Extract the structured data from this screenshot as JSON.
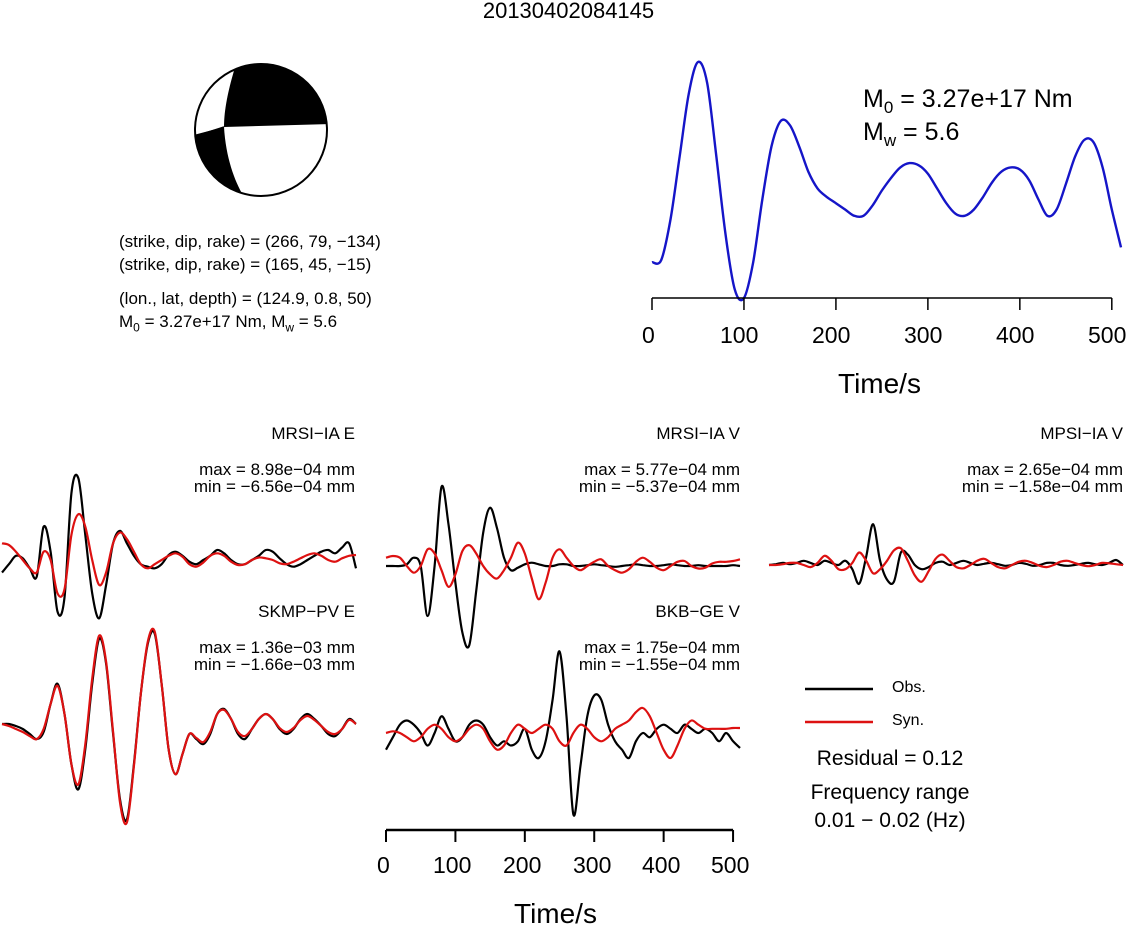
{
  "title": "20130402084145",
  "colors": {
    "obs": "#000000",
    "syn": "#dd1111",
    "stf": "#1515c8"
  },
  "focal_mechanism": {
    "line1": "(strike, dip, rake) = (266, 79, −134)",
    "line2": "(strike, dip, rake) = (165, 45, −15)",
    "line3": "(lon., lat, depth) = (124.9, 0.8, 50)",
    "m0_prefix": "M",
    "m0_sub": "0",
    "m0_mid": " = 3.27e+17 Nm, M",
    "mw_sub": "w",
    "mw_tail": " = 5.6"
  },
  "stf_annot": {
    "m0_base": "M",
    "m0_sub": "0",
    "m0_text": " = 3.27e+17 Nm",
    "mw_base": "M",
    "mw_sub": "w",
    "mw_text": " = 5.6"
  },
  "legend": {
    "obs": "Obs.",
    "syn": "Syn."
  },
  "info": {
    "residual": "Residual = 0.12",
    "freq_title": "Frequency range",
    "freq_value": "0.01 − 0.02 (Hz)"
  },
  "chart_data": [
    {
      "type": "line",
      "name": "source-time-function",
      "xlabel": "Time/s",
      "ylabel": "",
      "xlim": [
        0,
        510
      ],
      "xticks": [
        0,
        100,
        200,
        300,
        400,
        500
      ],
      "grid": false,
      "series": [
        {
          "name": "",
          "x": [
            0,
            10,
            20,
            30,
            40,
            50,
            60,
            70,
            80,
            90,
            100,
            110,
            120,
            130,
            140,
            150,
            160,
            170,
            180,
            190,
            200,
            210,
            220,
            230,
            240,
            250,
            260,
            270,
            280,
            290,
            300,
            310,
            320,
            330,
            340,
            350,
            360,
            370,
            380,
            390,
            400,
            410,
            420,
            430,
            440,
            450,
            460,
            470,
            480,
            490,
            500,
            510
          ],
          "y": [
            0.05,
            0.06,
            0.25,
            0.55,
            0.85,
            1.0,
            0.9,
            0.55,
            0.18,
            -0.08,
            -0.12,
            0.05,
            0.35,
            0.6,
            0.72,
            0.7,
            0.6,
            0.48,
            0.4,
            0.36,
            0.33,
            0.3,
            0.27,
            0.27,
            0.32,
            0.39,
            0.45,
            0.5,
            0.52,
            0.51,
            0.47,
            0.4,
            0.33,
            0.28,
            0.27,
            0.3,
            0.36,
            0.43,
            0.48,
            0.5,
            0.49,
            0.44,
            0.35,
            0.27,
            0.3,
            0.42,
            0.55,
            0.63,
            0.62,
            0.5,
            0.3,
            0.12
          ]
        }
      ]
    },
    {
      "type": "line",
      "name": "MRSI-IA E",
      "label": "MRSI−IA E",
      "max": "max = 8.98e−04 mm",
      "min": "min = −6.56e−04 mm",
      "x": [
        0,
        10,
        20,
        30,
        40,
        50,
        60,
        70,
        80,
        90,
        100,
        110,
        120,
        130,
        140,
        150,
        160,
        170,
        180,
        190,
        200,
        210,
        220,
        230,
        240,
        250,
        260,
        270,
        280,
        290,
        300,
        310,
        320,
        330,
        340,
        350,
        360,
        370,
        380,
        390,
        400,
        410,
        420,
        430,
        440,
        450,
        460,
        470,
        480,
        490,
        500,
        510
      ],
      "series": [
        {
          "name": "Obs.",
          "values": [
            -0.15,
            -0.05,
            0.05,
            0.02,
            -0.1,
            -0.2,
            0.4,
            0.1,
            -0.62,
            -0.45,
            0.8,
            0.98,
            0.3,
            -0.4,
            -0.7,
            -0.3,
            0.2,
            0.35,
            0.2,
            0.05,
            -0.05,
            -0.08,
            -0.1,
            -0.05,
            0.06,
            0.1,
            0.05,
            -0.02,
            -0.05,
            0.0,
            0.05,
            0.12,
            0.08,
            0.0,
            -0.05,
            -0.05,
            0.0,
            0.05,
            0.12,
            0.1,
            0.02,
            -0.05,
            -0.08,
            -0.05,
            0.0,
            0.05,
            0.1,
            0.12,
            0.08,
            0.15,
            0.2,
            -0.1
          ]
        },
        {
          "name": "Syn.",
          "values": [
            0.2,
            0.18,
            0.1,
            0.0,
            -0.1,
            -0.15,
            0.1,
            0.0,
            -0.4,
            -0.35,
            0.3,
            0.55,
            0.4,
            0.0,
            -0.3,
            -0.15,
            0.2,
            0.33,
            0.25,
            0.1,
            -0.05,
            -0.1,
            -0.05,
            0.0,
            0.05,
            0.08,
            0.04,
            -0.05,
            -0.08,
            -0.03,
            0.05,
            0.08,
            0.05,
            -0.02,
            -0.06,
            -0.05,
            0.0,
            0.03,
            0.02,
            0.0,
            -0.04,
            -0.05,
            -0.02,
            0.02,
            0.06,
            0.08,
            0.05,
            0.0,
            -0.02,
            0.02,
            0.05,
            0.06
          ]
        }
      ]
    },
    {
      "type": "line",
      "name": "MRSI-IA V",
      "label": "MRSI−IA V",
      "max": "max = 5.77e−04 mm",
      "min": "min = −5.37e−04 mm",
      "x": [
        0,
        10,
        20,
        30,
        40,
        50,
        60,
        70,
        80,
        90,
        100,
        110,
        120,
        130,
        140,
        150,
        160,
        170,
        180,
        190,
        200,
        210,
        220,
        230,
        240,
        250,
        260,
        270,
        280,
        290,
        300,
        310,
        320,
        330,
        340,
        350,
        360,
        370,
        380,
        390,
        400,
        410,
        420,
        430,
        440,
        450,
        460,
        470,
        480,
        490,
        500,
        510
      ],
      "series": [
        {
          "name": "Obs.",
          "values": [
            0.0,
            0.0,
            0.0,
            0.02,
            0.1,
            0.0,
            -0.6,
            0.0,
            0.95,
            0.5,
            -0.2,
            -0.8,
            -0.95,
            -0.3,
            0.4,
            0.7,
            0.45,
            0.1,
            -0.05,
            -0.02,
            0.02,
            0.04,
            0.02,
            0.0,
            0.0,
            0.02,
            0.02,
            0.0,
            0.0,
            0.01,
            0.02,
            0.01,
            0.0,
            -0.01,
            0.0,
            0.01,
            0.02,
            0.01,
            0.0,
            0.0,
            0.01,
            0.02,
            0.01,
            0.0,
            0.0,
            0.01,
            0.0,
            0.0,
            0.0,
            0.0,
            0.01,
            0.0
          ]
        },
        {
          "name": "Syn.",
          "values": [
            0.1,
            0.12,
            0.1,
            0.0,
            -0.08,
            0.0,
            0.2,
            0.15,
            -0.05,
            -0.25,
            -0.1,
            0.18,
            0.25,
            0.15,
            0.0,
            -0.1,
            -0.15,
            -0.05,
            0.1,
            0.28,
            0.15,
            -0.15,
            -0.4,
            -0.2,
            0.1,
            0.2,
            0.1,
            0.0,
            -0.05,
            0.0,
            0.05,
            0.08,
            0.0,
            -0.05,
            -0.08,
            -0.04,
            0.05,
            0.1,
            0.05,
            -0.02,
            -0.05,
            0.0,
            0.05,
            0.06,
            0.0,
            -0.03,
            -0.02,
            0.03,
            0.05,
            0.05,
            0.06,
            0.08
          ]
        }
      ]
    },
    {
      "type": "line",
      "name": "MPSI-IA V",
      "label": "MPSI−IA V",
      "max": "max = 2.65e−04 mm",
      "min": "min = −1.58e−04 mm",
      "x": [
        0,
        10,
        20,
        30,
        40,
        50,
        60,
        70,
        80,
        90,
        100,
        110,
        120,
        130,
        140,
        150,
        160,
        170,
        180,
        190,
        200,
        210,
        220,
        230,
        240,
        250,
        260,
        270,
        280,
        290,
        300,
        310,
        320,
        330,
        340,
        350,
        360,
        370,
        380,
        390,
        400,
        410,
        420,
        430,
        440,
        450,
        460,
        470,
        480,
        490,
        500,
        510
      ],
      "series": [
        {
          "name": "Obs.",
          "values": [
            0.0,
            0.02,
            0.05,
            0.02,
            0.05,
            0.1,
            0.05,
            0.0,
            0.1,
            0.05,
            0.0,
            0.1,
            -0.1,
            -0.45,
            0.2,
            0.98,
            0.1,
            -0.35,
            -0.4,
            0.3,
            0.25,
            0.0,
            -0.1,
            -0.05,
            0.05,
            0.08,
            0.0,
            0.05,
            0.1,
            0.05,
            0.0,
            0.03,
            0.05,
            0.02,
            -0.02,
            0.0,
            0.05,
            0.03,
            -0.02,
            0.0,
            0.05,
            0.05,
            0.0,
            -0.02,
            0.0,
            0.03,
            0.05,
            0.02,
            0.0,
            0.05,
            0.12,
            0.0
          ]
        },
        {
          "name": "Syn.",
          "values": [
            0.0,
            0.0,
            0.02,
            0.05,
            0.05,
            0.0,
            -0.05,
            0.05,
            0.22,
            0.1,
            -0.1,
            -0.1,
            0.05,
            0.3,
            0.1,
            -0.2,
            -0.1,
            0.1,
            0.35,
            0.4,
            0.1,
            -0.25,
            -0.4,
            -0.15,
            0.15,
            0.25,
            0.1,
            -0.05,
            -0.08,
            0.0,
            0.1,
            0.15,
            0.05,
            -0.05,
            -0.08,
            0.0,
            0.08,
            0.1,
            0.05,
            -0.02,
            -0.05,
            0.0,
            0.08,
            0.1,
            0.05,
            0.0,
            -0.03,
            0.0,
            0.05,
            0.04,
            0.02,
            0.0
          ]
        }
      ]
    },
    {
      "type": "line",
      "name": "SKMP-PV E",
      "label": "SKMP−PV E",
      "max": "max = 1.36e−03 mm",
      "min": "min = −1.66e−03 mm",
      "x": [
        0,
        10,
        20,
        30,
        40,
        50,
        60,
        70,
        80,
        90,
        100,
        110,
        120,
        130,
        140,
        150,
        160,
        170,
        180,
        190,
        200,
        210,
        220,
        230,
        240,
        250,
        260,
        270,
        280,
        290,
        300,
        310,
        320,
        330,
        340,
        350,
        360,
        370,
        380,
        390,
        400,
        410,
        420,
        430,
        440,
        450,
        460,
        470,
        480,
        490,
        500,
        510
      ],
      "series": [
        {
          "name": "Obs.",
          "values": [
            0.0,
            0.0,
            -0.02,
            -0.05,
            -0.1,
            -0.15,
            -0.08,
            0.2,
            0.4,
            0.1,
            -0.4,
            -0.65,
            -0.25,
            0.4,
            0.85,
            0.6,
            -0.1,
            -0.75,
            -0.95,
            -0.4,
            0.3,
            0.8,
            0.9,
            0.4,
            -0.25,
            -0.5,
            -0.3,
            -0.1,
            -0.15,
            -0.2,
            -0.1,
            0.1,
            0.15,
            0.05,
            -0.1,
            -0.15,
            -0.05,
            0.05,
            0.1,
            0.05,
            -0.05,
            -0.1,
            -0.05,
            0.05,
            0.1,
            0.05,
            -0.02,
            -0.1,
            -0.12,
            -0.05,
            0.05,
            0.0
          ]
        },
        {
          "name": "Syn.",
          "values": [
            0.0,
            -0.02,
            -0.05,
            -0.08,
            -0.12,
            -0.15,
            -0.05,
            0.2,
            0.38,
            0.1,
            -0.4,
            -0.6,
            -0.2,
            0.45,
            0.88,
            0.62,
            -0.08,
            -0.78,
            -0.98,
            -0.42,
            0.3,
            0.82,
            0.92,
            0.4,
            -0.25,
            -0.5,
            -0.3,
            -0.1,
            -0.14,
            -0.18,
            -0.08,
            0.1,
            0.14,
            0.05,
            -0.08,
            -0.12,
            -0.05,
            0.05,
            0.1,
            0.05,
            -0.04,
            -0.08,
            -0.04,
            0.04,
            0.08,
            0.04,
            -0.02,
            -0.08,
            -0.1,
            -0.05,
            0.04,
            0.0
          ]
        }
      ]
    },
    {
      "type": "line",
      "name": "BKB-GE V",
      "label": "BKB−GE V",
      "max": "max = 1.75e−04 mm",
      "min": "min = −1.55e−04 mm",
      "xlabel": "Time/s",
      "xlim": [
        0,
        510
      ],
      "xticks": [
        0,
        100,
        200,
        300,
        400,
        500
      ],
      "x": [
        0,
        10,
        20,
        30,
        40,
        50,
        60,
        70,
        80,
        90,
        100,
        110,
        120,
        130,
        140,
        150,
        160,
        170,
        180,
        190,
        200,
        210,
        220,
        230,
        240,
        250,
        260,
        270,
        280,
        290,
        300,
        310,
        320,
        330,
        340,
        350,
        360,
        370,
        380,
        390,
        400,
        410,
        420,
        430,
        440,
        450,
        460,
        470,
        480,
        490,
        500,
        510
      ],
      "series": [
        {
          "name": "Obs.",
          "values": [
            -0.2,
            -0.05,
            0.1,
            0.15,
            0.1,
            0.0,
            -0.15,
            0.0,
            0.2,
            0.05,
            -0.1,
            -0.05,
            0.1,
            0.15,
            0.1,
            -0.05,
            -0.15,
            -0.1,
            -0.15,
            -0.1,
            0.05,
            -0.2,
            -0.3,
            -0.1,
            0.4,
            0.98,
            0.2,
            -0.98,
            -0.4,
            0.2,
            0.45,
            0.4,
            0.1,
            -0.1,
            -0.2,
            -0.3,
            -0.1,
            0.0,
            -0.05,
            0.05,
            0.1,
            0.05,
            0.0,
            0.1,
            0.05,
            0.0,
            0.05,
            0.0,
            -0.1,
            0.0,
            -0.1,
            -0.18
          ]
        },
        {
          "name": "Syn.",
          "values": [
            0.0,
            0.02,
            0.0,
            -0.05,
            -0.1,
            -0.05,
            0.05,
            0.1,
            0.05,
            -0.05,
            -0.1,
            -0.05,
            0.05,
            0.1,
            0.05,
            -0.1,
            -0.2,
            -0.15,
            0.0,
            0.1,
            0.05,
            0.0,
            0.05,
            0.1,
            0.05,
            -0.1,
            -0.15,
            0.0,
            0.1,
            0.05,
            -0.05,
            -0.1,
            -0.05,
            0.05,
            0.1,
            0.15,
            0.25,
            0.3,
            0.2,
            0.0,
            -0.2,
            -0.3,
            -0.15,
            0.05,
            0.15,
            0.1,
            0.05,
            0.05,
            0.05,
            0.05,
            0.06,
            0.06
          ]
        }
      ]
    }
  ]
}
